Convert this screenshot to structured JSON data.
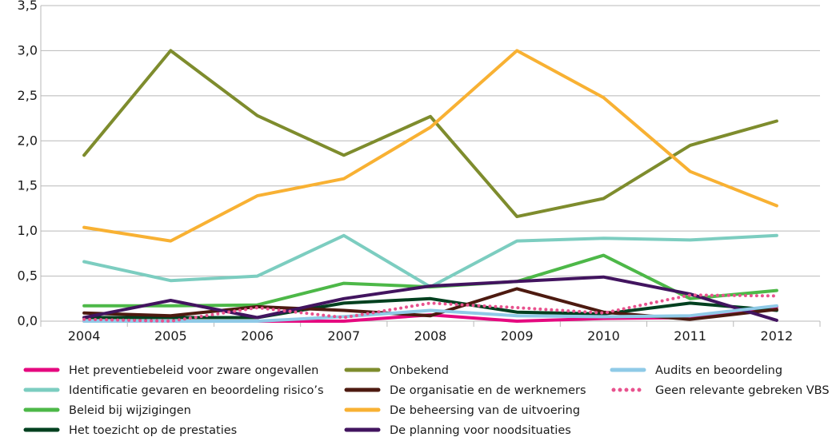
{
  "chart_data": {
    "type": "line",
    "title": "",
    "xlabel": "",
    "ylabel": "",
    "categories": [
      "2004",
      "2005",
      "2006",
      "2007",
      "2008",
      "2009",
      "2010",
      "2011",
      "2012"
    ],
    "yticks": [
      "0,0",
      "0,5",
      "1,0",
      "1,5",
      "2,0",
      "2,5",
      "3,0",
      "3,5"
    ],
    "ylim": [
      0,
      3.5
    ],
    "grid": "horizontal",
    "legend_position": "bottom",
    "series": [
      {
        "name": "Het preventiebeleid voor zware ongevallen",
        "color": "#e5097f",
        "style": "solid",
        "values": [
          0.0,
          0.0,
          0.0,
          0.0,
          0.07,
          0.0,
          0.03,
          0.04,
          0.16
        ]
      },
      {
        "name": "Identificatie gevaren en beoordeling risico’s",
        "color": "#7ccdc0",
        "style": "solid",
        "values": [
          0.66,
          0.45,
          0.5,
          0.95,
          0.38,
          0.89,
          0.92,
          0.9,
          0.95
        ]
      },
      {
        "name": "Beleid bij wijzigingen",
        "color": "#4db848",
        "style": "solid",
        "values": [
          0.17,
          0.17,
          0.18,
          0.42,
          0.38,
          0.44,
          0.73,
          0.25,
          0.34
        ]
      },
      {
        "name": "Het toezicht op de prestaties",
        "color": "#00401f",
        "style": "solid",
        "values": [
          0.04,
          0.04,
          0.04,
          0.2,
          0.25,
          0.1,
          0.08,
          0.2,
          0.12
        ]
      },
      {
        "name": "Onbekend",
        "color": "#7e8c2d",
        "style": "solid",
        "values": [
          1.84,
          3.0,
          2.28,
          1.84,
          2.27,
          1.16,
          1.36,
          1.95,
          2.22
        ]
      },
      {
        "name": "De organisatie en de werknemers",
        "color": "#4d1a10",
        "style": "solid",
        "values": [
          0.09,
          0.06,
          0.16,
          0.12,
          0.06,
          0.36,
          0.1,
          0.02,
          0.13
        ]
      },
      {
        "name": "De beheersing van de uitvoering",
        "color": "#f8b133",
        "style": "solid",
        "values": [
          1.04,
          0.89,
          1.39,
          1.58,
          2.15,
          3.0,
          2.48,
          1.66,
          1.28
        ]
      },
      {
        "name": "De planning voor noodsituaties",
        "color": "#42145f",
        "style": "solid",
        "values": [
          0.04,
          0.23,
          0.04,
          0.25,
          0.39,
          0.44,
          0.49,
          0.3,
          0.01
        ]
      },
      {
        "name": "Audits en beoordeling",
        "color": "#8fcae7",
        "style": "solid",
        "values": [
          0.0,
          0.0,
          0.0,
          0.05,
          0.12,
          0.06,
          0.05,
          0.06,
          0.17
        ]
      },
      {
        "name": "Geen relevante gebreken VBS",
        "color": "#e8528e",
        "style": "dotted",
        "values": [
          0.02,
          0.0,
          0.15,
          0.04,
          0.2,
          0.15,
          0.09,
          0.29,
          0.28
        ]
      }
    ]
  }
}
